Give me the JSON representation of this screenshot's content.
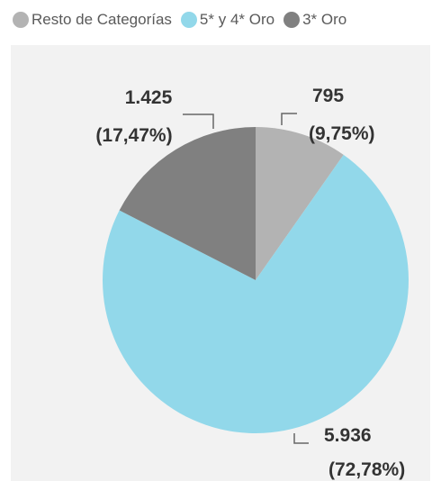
{
  "chart_data": {
    "type": "pie",
    "title": "",
    "legend_position": "top-left",
    "slices": [
      {
        "name": "Resto de Categorías",
        "value": 795,
        "value_label": "795",
        "pct_label": "(9,75%)",
        "color": "#b3b3b3"
      },
      {
        "name": "5* y 4* Oro",
        "value": 5936,
        "value_label": "5.936",
        "pct_label": "(72,78%)",
        "color": "#92d8ea"
      },
      {
        "name": "3* Oro",
        "value": 1425,
        "value_label": "1.425",
        "pct_label": "(17,47%)",
        "color": "#808080"
      }
    ]
  }
}
